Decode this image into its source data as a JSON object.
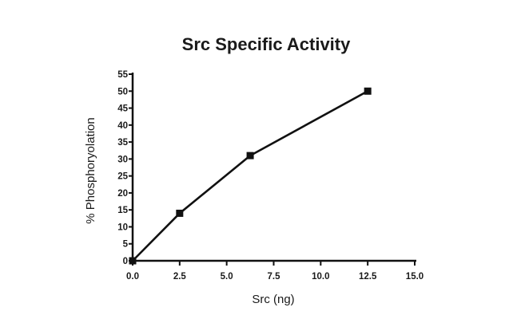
{
  "chart_data": {
    "type": "line",
    "title": "Src Specific Activity",
    "xlabel": "Src (ng)",
    "ylabel": "% Phosphoryolation",
    "xlim": [
      0,
      15
    ],
    "ylim": [
      0,
      55
    ],
    "xticks": [
      "0.0",
      "2.5",
      "5.0",
      "7.5",
      "10.0",
      "12.5",
      "15.0"
    ],
    "yticks": [
      "0",
      "5",
      "10",
      "15",
      "20",
      "25",
      "30",
      "35",
      "40",
      "45",
      "50",
      "55"
    ],
    "grid": false,
    "series": [
      {
        "x": [
          0,
          2.5,
          6.25,
          12.5
        ],
        "y": [
          0,
          14,
          31,
          50
        ],
        "marker": "square",
        "color": "#111111"
      }
    ]
  }
}
